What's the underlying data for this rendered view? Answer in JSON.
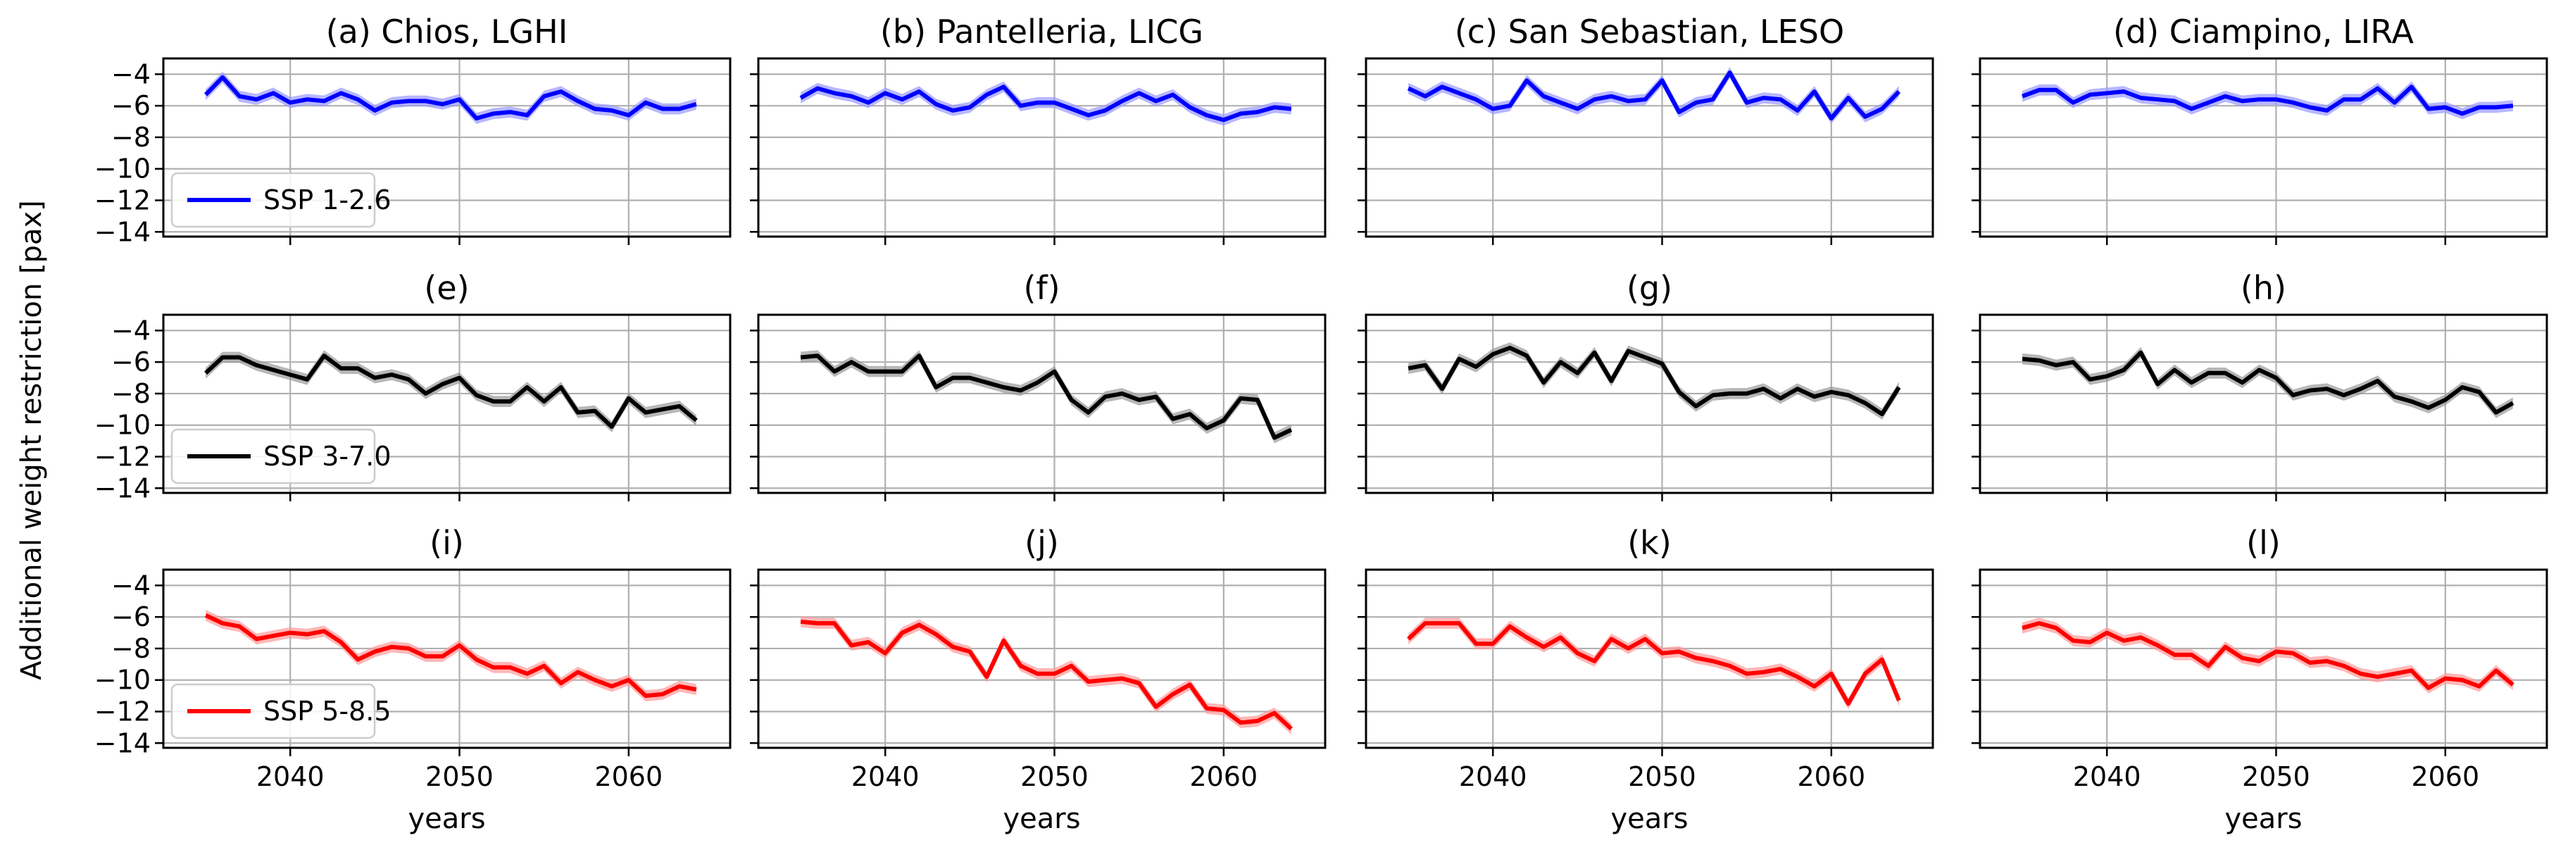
{
  "figure": {
    "ylabel": "Additional weight restriction [pax]",
    "xlabel": "years"
  },
  "chart_data": {
    "type": "line",
    "x": [
      2035,
      2036,
      2037,
      2038,
      2039,
      2040,
      2041,
      2042,
      2043,
      2044,
      2045,
      2046,
      2047,
      2048,
      2049,
      2050,
      2051,
      2052,
      2053,
      2054,
      2055,
      2056,
      2057,
      2058,
      2059,
      2060,
      2061,
      2062,
      2063,
      2064
    ],
    "xlim": [
      2032.5,
      2066
    ],
    "ylim": [
      -14.3,
      -3.0
    ],
    "xticks": [
      2040,
      2050,
      2060
    ],
    "yticks": [
      -14,
      -12,
      -10,
      -8,
      -6,
      -4
    ],
    "grid": true,
    "band_halfwidth": 0.35,
    "scenarios": [
      {
        "name": "SSP 1-2.6",
        "color": "#0000ff",
        "band_color": "#9999ff"
      },
      {
        "name": "SSP 3-7.0",
        "color": "#000000",
        "band_color": "#999999"
      },
      {
        "name": "SSP 5-8.5",
        "color": "#ff0000",
        "band_color": "#ff9999"
      }
    ],
    "panels": [
      {
        "id": "a",
        "title": "(a) Chios, LGHI",
        "scenario": 0,
        "values": [
          -5.3,
          -4.2,
          -5.4,
          -5.6,
          -5.2,
          -5.8,
          -5.6,
          -5.7,
          -5.2,
          -5.6,
          -6.3,
          -5.8,
          -5.7,
          -5.7,
          -5.9,
          -5.6,
          -6.8,
          -6.5,
          -6.4,
          -6.6,
          -5.4,
          -5.1,
          -5.7,
          -6.2,
          -6.3,
          -6.6,
          -5.8,
          -6.2,
          -6.2,
          -5.9
        ]
      },
      {
        "id": "b",
        "title": "(b) Pantelleria, LICG",
        "scenario": 0,
        "values": [
          -5.5,
          -4.9,
          -5.2,
          -5.4,
          -5.8,
          -5.2,
          -5.6,
          -5.1,
          -5.9,
          -6.3,
          -6.1,
          -5.3,
          -4.8,
          -6.0,
          -5.8,
          -5.8,
          -6.2,
          -6.6,
          -6.3,
          -5.7,
          -5.2,
          -5.7,
          -5.3,
          -6.1,
          -6.6,
          -6.9,
          -6.5,
          -6.4,
          -6.1,
          -6.2
        ]
      },
      {
        "id": "c",
        "title": "(c) San Sebastian, LESO",
        "scenario": 0,
        "values": [
          -4.9,
          -5.4,
          -4.8,
          -5.2,
          -5.6,
          -6.2,
          -6.0,
          -4.4,
          -5.4,
          -5.8,
          -6.2,
          -5.6,
          -5.4,
          -5.7,
          -5.6,
          -4.4,
          -6.4,
          -5.8,
          -5.6,
          -3.9,
          -5.8,
          -5.5,
          -5.6,
          -6.3,
          -5.1,
          -6.8,
          -5.5,
          -6.7,
          -6.2,
          -5.1
        ]
      },
      {
        "id": "d",
        "title": "(d) Ciampino, LIRA",
        "scenario": 0,
        "values": [
          -5.4,
          -5.0,
          -5.0,
          -5.8,
          -5.3,
          -5.2,
          -5.1,
          -5.5,
          -5.6,
          -5.7,
          -6.2,
          -5.8,
          -5.4,
          -5.7,
          -5.6,
          -5.6,
          -5.8,
          -6.1,
          -6.3,
          -5.6,
          -5.6,
          -4.9,
          -5.8,
          -4.8,
          -6.2,
          -6.1,
          -6.5,
          -6.1,
          -6.1,
          -6.0
        ]
      },
      {
        "id": "e",
        "title": "(e)",
        "scenario": 1,
        "values": [
          -6.7,
          -5.7,
          -5.7,
          -6.2,
          -6.5,
          -6.8,
          -7.1,
          -5.6,
          -6.4,
          -6.4,
          -7.0,
          -6.8,
          -7.1,
          -8.0,
          -7.4,
          -7.0,
          -8.1,
          -8.5,
          -8.5,
          -7.6,
          -8.5,
          -7.6,
          -9.2,
          -9.1,
          -10.1,
          -8.3,
          -9.2,
          -9.0,
          -8.8,
          -9.7
        ]
      },
      {
        "id": "f",
        "title": "(f)",
        "scenario": 1,
        "values": [
          -5.7,
          -5.6,
          -6.6,
          -6.0,
          -6.6,
          -6.6,
          -6.6,
          -5.6,
          -7.6,
          -7.0,
          -7.0,
          -7.3,
          -7.6,
          -7.8,
          -7.3,
          -6.6,
          -8.4,
          -9.2,
          -8.2,
          -8.0,
          -8.4,
          -8.2,
          -9.6,
          -9.3,
          -10.2,
          -9.7,
          -8.3,
          -8.4,
          -10.8,
          -10.3
        ]
      },
      {
        "id": "g",
        "title": "(g)",
        "scenario": 1,
        "values": [
          -6.4,
          -6.2,
          -7.7,
          -5.8,
          -6.3,
          -5.5,
          -5.1,
          -5.6,
          -7.3,
          -6.0,
          -6.7,
          -5.4,
          -7.2,
          -5.3,
          -5.7,
          -6.1,
          -7.9,
          -8.8,
          -8.1,
          -8.0,
          -8.0,
          -7.7,
          -8.3,
          -7.7,
          -8.2,
          -7.9,
          -8.1,
          -8.6,
          -9.3,
          -7.6
        ]
      },
      {
        "id": "h",
        "title": "(h)",
        "scenario": 1,
        "values": [
          -5.8,
          -5.9,
          -6.2,
          -6.0,
          -7.1,
          -6.9,
          -6.5,
          -5.4,
          -7.4,
          -6.5,
          -7.3,
          -6.7,
          -6.7,
          -7.3,
          -6.5,
          -7.0,
          -8.1,
          -7.8,
          -7.7,
          -8.1,
          -7.7,
          -7.2,
          -8.2,
          -8.5,
          -8.9,
          -8.4,
          -7.6,
          -7.9,
          -9.2,
          -8.6
        ]
      },
      {
        "id": "i",
        "title": "(i)",
        "scenario": 2,
        "values": [
          -5.9,
          -6.4,
          -6.6,
          -7.4,
          -7.2,
          -7.0,
          -7.1,
          -6.9,
          -7.6,
          -8.7,
          -8.2,
          -7.9,
          -8.0,
          -8.5,
          -8.5,
          -7.8,
          -8.7,
          -9.2,
          -9.2,
          -9.6,
          -9.1,
          -10.2,
          -9.5,
          -10.0,
          -10.4,
          -10.0,
          -11.0,
          -10.9,
          -10.4,
          -10.6
        ]
      },
      {
        "id": "j",
        "title": "(j)",
        "scenario": 2,
        "values": [
          -6.3,
          -6.4,
          -6.4,
          -7.8,
          -7.6,
          -8.3,
          -7.0,
          -6.5,
          -7.1,
          -7.9,
          -8.2,
          -9.8,
          -7.5,
          -9.1,
          -9.6,
          -9.6,
          -9.1,
          -10.1,
          -10.0,
          -9.9,
          -10.2,
          -11.7,
          -10.9,
          -10.3,
          -11.8,
          -11.9,
          -12.7,
          -12.6,
          -12.1,
          -13.1
        ]
      },
      {
        "id": "k",
        "title": "(k)",
        "scenario": 2,
        "values": [
          -7.4,
          -6.4,
          -6.4,
          -6.4,
          -7.7,
          -7.7,
          -6.6,
          -7.3,
          -7.9,
          -7.3,
          -8.3,
          -8.8,
          -7.4,
          -8.0,
          -7.4,
          -8.3,
          -8.2,
          -8.6,
          -8.8,
          -9.1,
          -9.6,
          -9.5,
          -9.3,
          -9.8,
          -10.4,
          -9.6,
          -11.5,
          -9.6,
          -8.7,
          -11.3
        ]
      },
      {
        "id": "l",
        "title": "(l)",
        "scenario": 2,
        "values": [
          -6.7,
          -6.4,
          -6.7,
          -7.5,
          -7.6,
          -7.0,
          -7.5,
          -7.3,
          -7.8,
          -8.4,
          -8.4,
          -9.1,
          -7.9,
          -8.6,
          -8.8,
          -8.2,
          -8.3,
          -8.9,
          -8.8,
          -9.1,
          -9.6,
          -9.8,
          -9.6,
          -9.4,
          -10.5,
          -9.9,
          -10.0,
          -10.4,
          -9.4,
          -10.3
        ]
      }
    ]
  }
}
